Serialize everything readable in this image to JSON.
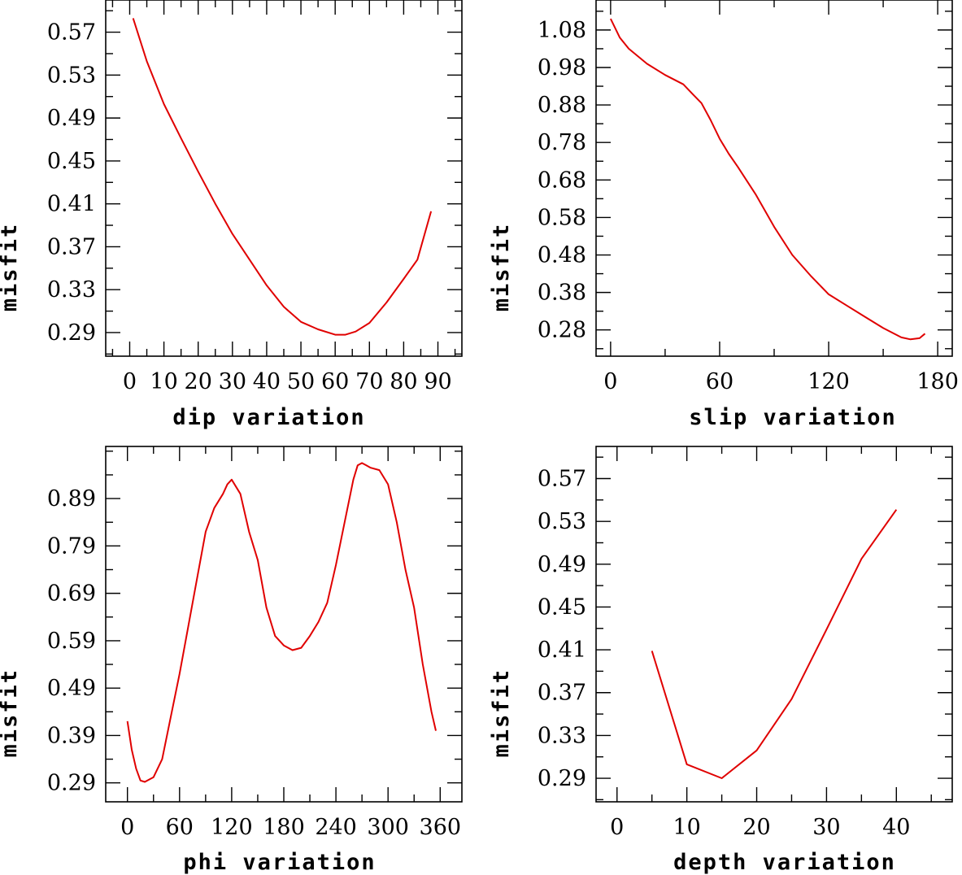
{
  "chart_data": [
    {
      "type": "line",
      "xlabel": "dip    variation",
      "ylabel": "misfit",
      "xlim": [
        -7,
        97
      ],
      "ylim": [
        0.268,
        0.6
      ],
      "xticks": [
        0,
        10,
        20,
        30,
        40,
        50,
        60,
        70,
        80,
        90
      ],
      "xtick_labels": [
        "0",
        "10",
        "20",
        "30",
        "40",
        "50",
        "60",
        "70",
        "80",
        "90"
      ],
      "yticks": [
        0.29,
        0.33,
        0.37,
        0.41,
        0.45,
        0.49,
        0.53,
        0.57
      ],
      "ytick_labels": [
        "0.29",
        "0.33",
        "0.37",
        "0.41",
        "0.45",
        "0.49",
        "0.53",
        "0.57"
      ],
      "series": [
        {
          "name": "misfit",
          "x": [
            1,
            5,
            10,
            15,
            20,
            25,
            30,
            35,
            40,
            45,
            50,
            55,
            60,
            63,
            66,
            70,
            75,
            80,
            84,
            88
          ],
          "y": [
            0.583,
            0.543,
            0.503,
            0.471,
            0.44,
            0.41,
            0.382,
            0.358,
            0.334,
            0.314,
            0.3,
            0.293,
            0.288,
            0.288,
            0.291,
            0.299,
            0.318,
            0.34,
            0.358,
            0.403
          ]
        }
      ]
    },
    {
      "type": "line",
      "xlabel": "slip   variation",
      "ylabel": "misfit",
      "xlim": [
        -8,
        188
      ],
      "ylim": [
        0.21,
        1.16
      ],
      "xticks": [
        0,
        60,
        120,
        180
      ],
      "xtick_labels": [
        "0",
        "60",
        "120",
        "180"
      ],
      "yticks": [
        0.28,
        0.38,
        0.48,
        0.58,
        0.68,
        0.78,
        0.88,
        0.98,
        1.08
      ],
      "ytick_labels": [
        "0.28",
        "0.38",
        "0.48",
        "0.58",
        "0.68",
        "0.78",
        "0.88",
        "0.98",
        "1.08"
      ],
      "series": [
        {
          "name": "misfit",
          "x": [
            0,
            5,
            10,
            20,
            30,
            40,
            45,
            50,
            55,
            60,
            65,
            70,
            80,
            90,
            100,
            110,
            120,
            130,
            140,
            150,
            160,
            165,
            170,
            173
          ],
          "y": [
            1.11,
            1.06,
            1.03,
            0.99,
            0.96,
            0.935,
            0.91,
            0.885,
            0.84,
            0.79,
            0.75,
            0.715,
            0.64,
            0.555,
            0.48,
            0.425,
            0.375,
            0.345,
            0.315,
            0.285,
            0.26,
            0.255,
            0.258,
            0.27
          ]
        }
      ]
    },
    {
      "type": "line",
      "xlabel": "phi    variation",
      "ylabel": "misfit",
      "xlim": [
        -25,
        385
      ],
      "ylim": [
        0.25,
        1.0
      ],
      "xticks": [
        0,
        60,
        120,
        180,
        240,
        300,
        360
      ],
      "xtick_labels": [
        "0",
        "60",
        "120",
        "180",
        "240",
        "300",
        "360"
      ],
      "yticks": [
        0.29,
        0.39,
        0.49,
        0.59,
        0.69,
        0.79,
        0.89
      ],
      "ytick_labels": [
        "0.29",
        "0.39",
        "0.49",
        "0.59",
        "0.69",
        "0.79",
        "0.89"
      ],
      "series": [
        {
          "name": "misfit",
          "x": [
            0,
            5,
            10,
            15,
            20,
            25,
            30,
            40,
            50,
            60,
            70,
            80,
            90,
            100,
            110,
            115,
            120,
            130,
            140,
            150,
            160,
            170,
            180,
            190,
            200,
            210,
            220,
            230,
            240,
            250,
            260,
            265,
            270,
            275,
            280,
            290,
            300,
            310,
            320,
            330,
            340,
            350,
            355
          ],
          "y": [
            0.42,
            0.36,
            0.32,
            0.295,
            0.292,
            0.297,
            0.302,
            0.34,
            0.43,
            0.52,
            0.62,
            0.72,
            0.82,
            0.87,
            0.9,
            0.92,
            0.93,
            0.9,
            0.82,
            0.76,
            0.66,
            0.6,
            0.58,
            0.57,
            0.575,
            0.6,
            0.63,
            0.67,
            0.75,
            0.84,
            0.93,
            0.96,
            0.965,
            0.96,
            0.955,
            0.95,
            0.92,
            0.84,
            0.74,
            0.66,
            0.54,
            0.44,
            0.4
          ]
        }
      ]
    },
    {
      "type": "line",
      "xlabel": "depth  variation",
      "ylabel": "misfit",
      "xlim": [
        -3,
        48
      ],
      "ylim": [
        0.268,
        0.6
      ],
      "xticks": [
        0,
        10,
        20,
        30,
        40
      ],
      "xtick_labels": [
        "0",
        "10",
        "20",
        "30",
        "40"
      ],
      "yticks": [
        0.29,
        0.33,
        0.37,
        0.41,
        0.45,
        0.49,
        0.53,
        0.57
      ],
      "ytick_labels": [
        "0.29",
        "0.33",
        "0.37",
        "0.41",
        "0.45",
        "0.49",
        "0.53",
        "0.57"
      ],
      "series": [
        {
          "name": "misfit",
          "x": [
            5,
            10,
            15,
            20,
            25,
            30,
            35,
            40
          ],
          "y": [
            0.409,
            0.303,
            0.29,
            0.316,
            0.364,
            0.429,
            0.495,
            0.541
          ]
        }
      ]
    }
  ]
}
